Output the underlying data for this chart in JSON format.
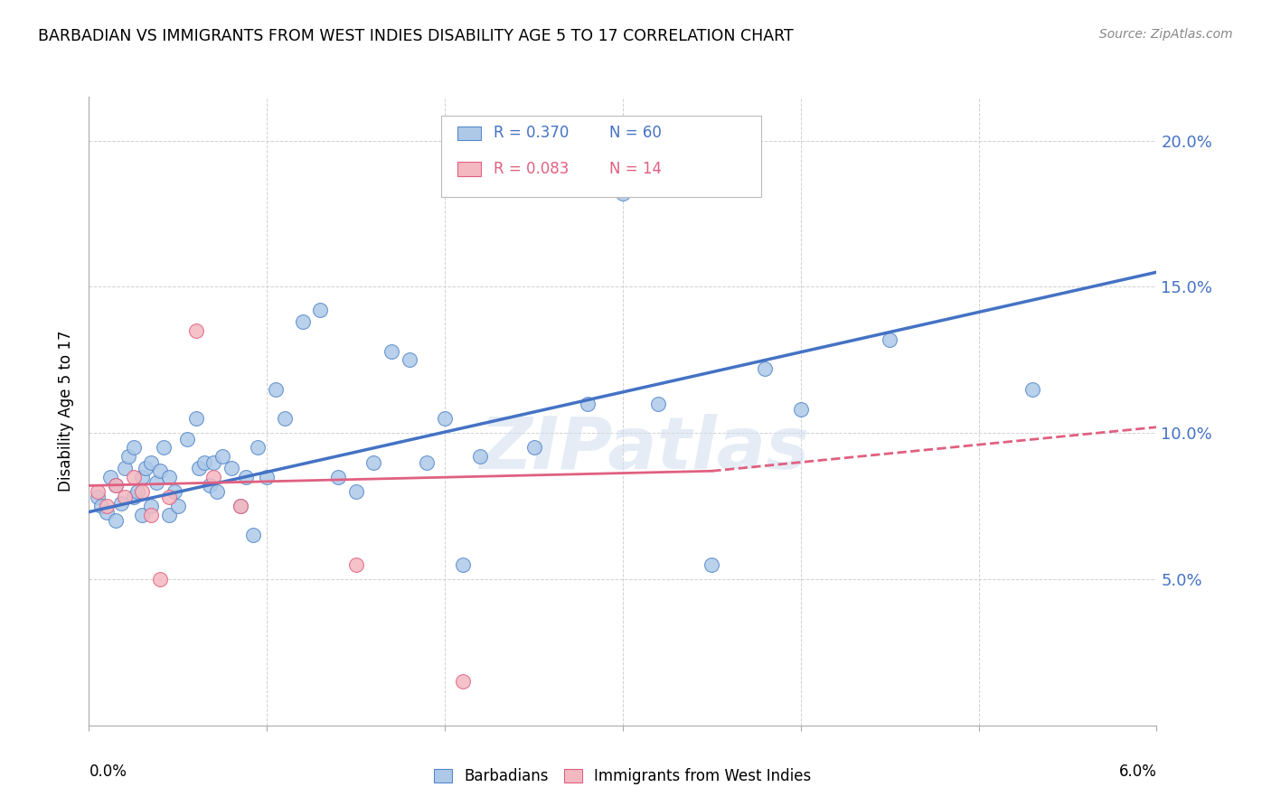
{
  "title": "BARBADIAN VS IMMIGRANTS FROM WEST INDIES DISABILITY AGE 5 TO 17 CORRELATION CHART",
  "source": "Source: ZipAtlas.com",
  "ylabel": "Disability Age 5 to 17",
  "xlim": [
    0.0,
    6.0
  ],
  "ylim": [
    0.0,
    21.5
  ],
  "yticks": [
    5.0,
    10.0,
    15.0,
    20.0
  ],
  "legend_blue_R": "R = 0.370",
  "legend_blue_N": "N = 60",
  "legend_pink_R": "R = 0.083",
  "legend_pink_N": "N = 14",
  "blue_color": "#AEC9E8",
  "pink_color": "#F4B8C0",
  "blue_edge_color": "#5588CC",
  "pink_edge_color": "#E06080",
  "blue_line_color": "#4472C4",
  "pink_line_color": "#E06080",
  "watermark": "ZIPatlas",
  "blue_scatter_x": [
    0.05,
    0.07,
    0.1,
    0.12,
    0.15,
    0.15,
    0.18,
    0.2,
    0.22,
    0.25,
    0.25,
    0.27,
    0.3,
    0.3,
    0.32,
    0.35,
    0.35,
    0.38,
    0.4,
    0.42,
    0.45,
    0.45,
    0.48,
    0.5,
    0.55,
    0.6,
    0.62,
    0.65,
    0.68,
    0.7,
    0.72,
    0.75,
    0.8,
    0.85,
    0.88,
    0.92,
    0.95,
    1.0,
    1.05,
    1.1,
    1.2,
    1.3,
    1.4,
    1.5,
    1.6,
    1.7,
    1.8,
    1.9,
    2.0,
    2.1,
    2.2,
    2.5,
    2.8,
    3.0,
    3.2,
    3.5,
    3.8,
    4.0,
    4.5,
    5.3
  ],
  "blue_scatter_y": [
    7.8,
    7.5,
    7.3,
    8.5,
    8.2,
    7.0,
    7.6,
    8.8,
    9.2,
    9.5,
    7.8,
    8.0,
    8.5,
    7.2,
    8.8,
    9.0,
    7.5,
    8.3,
    8.7,
    9.5,
    8.5,
    7.2,
    8.0,
    7.5,
    9.8,
    10.5,
    8.8,
    9.0,
    8.2,
    9.0,
    8.0,
    9.2,
    8.8,
    7.5,
    8.5,
    6.5,
    9.5,
    8.5,
    11.5,
    10.5,
    13.8,
    14.2,
    8.5,
    8.0,
    9.0,
    12.8,
    12.5,
    9.0,
    10.5,
    5.5,
    9.2,
    9.5,
    11.0,
    18.2,
    11.0,
    5.5,
    12.2,
    10.8,
    13.2,
    11.5
  ],
  "pink_scatter_x": [
    0.05,
    0.1,
    0.15,
    0.2,
    0.25,
    0.3,
    0.35,
    0.4,
    0.45,
    0.6,
    0.7,
    0.85,
    1.5,
    2.1
  ],
  "pink_scatter_y": [
    8.0,
    7.5,
    8.2,
    7.8,
    8.5,
    8.0,
    7.2,
    5.0,
    7.8,
    13.5,
    8.5,
    7.5,
    5.5,
    1.5
  ],
  "blue_line_x0": 0.0,
  "blue_line_x1": 6.0,
  "blue_line_y0": 7.3,
  "blue_line_y1": 15.5,
  "pink_line_x0": 0.0,
  "pink_line_x1": 3.5,
  "pink_line_y0": 8.2,
  "pink_line_y1": 8.7,
  "pink_dash_x0": 3.5,
  "pink_dash_x1": 6.0,
  "pink_dash_y0": 8.7,
  "pink_dash_y1": 10.2
}
